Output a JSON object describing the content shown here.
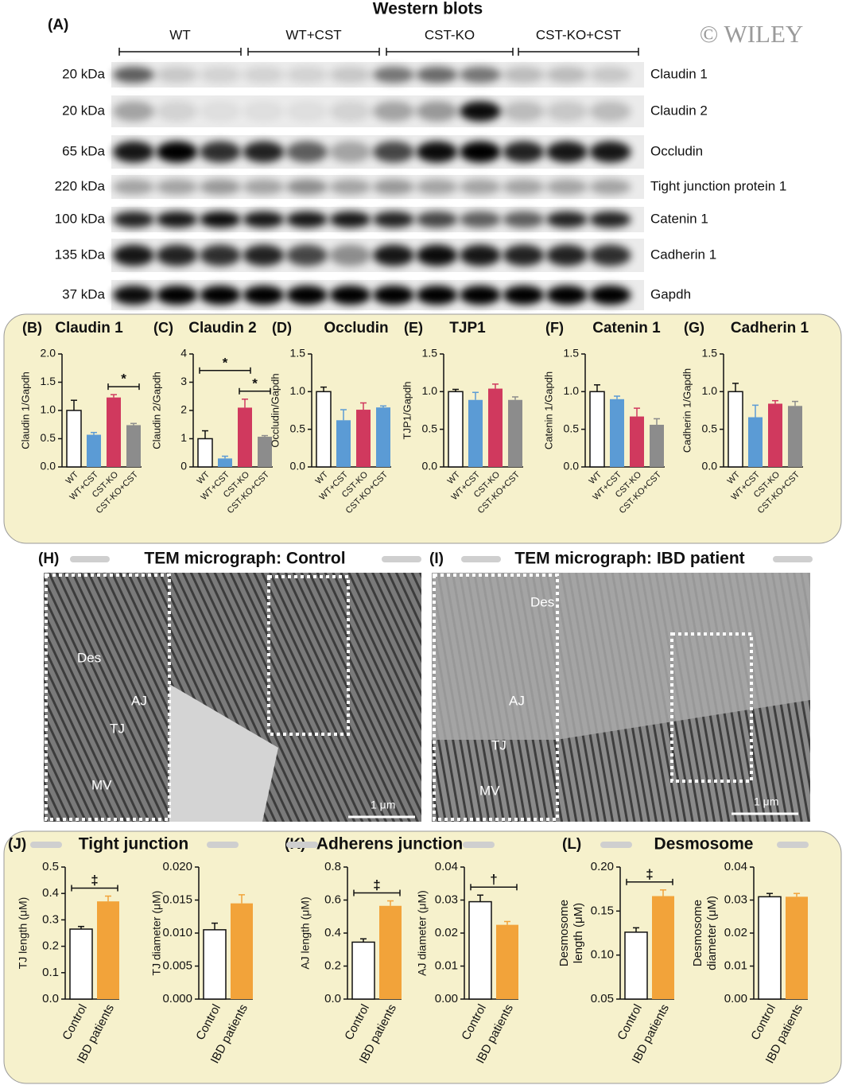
{
  "watermark": "© WILEY",
  "blots": {
    "label": "(A)",
    "title": "Western blots",
    "groups": [
      "WT",
      "WT+CST",
      "CST-KO",
      "CST-KO+CST"
    ],
    "rows": [
      {
        "size": "20 kDa",
        "protein": "Claudin 1"
      },
      {
        "size": "20 kDa",
        "protein": "Claudin 2"
      },
      {
        "size": "65 kDa",
        "protein": "Occludin"
      },
      {
        "size": "220 kDa",
        "protein": "Tight junction protein 1"
      },
      {
        "size": "100 kDa",
        "protein": "Catenin 1"
      },
      {
        "size": "135 kDa",
        "protein": "Cadherin 1"
      },
      {
        "size": "37 kDa",
        "protein": "Gapdh"
      }
    ]
  },
  "tem": [
    {
      "label": "(H)",
      "title": "TEM micrograph: Control",
      "annotations": [
        "Des",
        "AJ",
        "TJ",
        "MV"
      ],
      "scale": "1 μm"
    },
    {
      "label": "(I)",
      "title": "TEM micrograph: IBD patient",
      "annotations": [
        "Des",
        "AJ",
        "TJ",
        "MV"
      ],
      "scale": "1 μm"
    }
  ],
  "groups": [
    {
      "label": "(J)",
      "title": "Tight junction"
    },
    {
      "label": "(K)",
      "title": "Adherens junction"
    },
    {
      "label": "(L)",
      "title": "Desmosome"
    }
  ],
  "chart_data": [
    {
      "type": "bar",
      "panel": "(B)",
      "title": "Claudin 1",
      "ylabel": "Claudin 1/Gapdh",
      "categories": [
        "WT",
        "WT+CST",
        "CST-KO",
        "CST-KO+CST"
      ],
      "values": [
        1.0,
        0.57,
        1.23,
        0.74
      ],
      "errors": [
        0.18,
        0.04,
        0.05,
        0.03
      ],
      "colors": [
        "#ffffff",
        "#5b9bd5",
        "#d0395e",
        "#8c8c8c"
      ],
      "ylim": [
        0,
        2
      ],
      "yticks": [
        {
          "value": 0,
          "label": "0.0"
        },
        0.5,
        {
          "value": 1,
          "label": "1.0"
        },
        1.5,
        {
          "value": 2,
          "label": "2.0"
        }
      ],
      "significance": [
        {
          "from": 2,
          "to": 3,
          "label": "*"
        }
      ]
    },
    {
      "type": "bar",
      "panel": "(C)",
      "title": "Claudin 2",
      "ylabel": "Claudin 2/Gapdh",
      "categories": [
        "WT",
        "WT+CST",
        "CST-KO",
        "CST-KO+CST"
      ],
      "values": [
        1.0,
        0.3,
        2.1,
        1.07
      ],
      "errors": [
        0.28,
        0.08,
        0.3,
        0.04
      ],
      "colors": [
        "#ffffff",
        "#5b9bd5",
        "#d0395e",
        "#8c8c8c"
      ],
      "ylim": [
        0,
        4
      ],
      "yticks": [
        0,
        1,
        2,
        3,
        4
      ],
      "significance": [
        {
          "from": 0,
          "to": 2,
          "label": "*"
        },
        {
          "from": 2,
          "to": 3,
          "label": "*"
        }
      ]
    },
    {
      "type": "bar",
      "panel": "(D)",
      "title": "Occludin",
      "ylabel": "Occludin/Gapdh",
      "categories": [
        "WT",
        "WT+CST",
        "CST-KO",
        "CST-KO+CST"
      ],
      "values": [
        1.0,
        0.62,
        0.76,
        0.79
      ],
      "errors": [
        0.06,
        0.14,
        0.09,
        0.02
      ],
      "colors": [
        "#ffffff",
        "#5b9bd5",
        "#d0395e",
        "#5b9bd5"
      ],
      "ylim": [
        0,
        1.5
      ],
      "yticks": [
        {
          "value": 0,
          "label": "0.0"
        },
        0.5,
        {
          "value": 1,
          "label": "1.0"
        },
        1.5
      ]
    },
    {
      "type": "bar",
      "panel": "(E)",
      "title": "TJP1",
      "ylabel": "TJP1/Gapdh",
      "categories": [
        "WT",
        "WT+CST",
        "CST-KO",
        "CST-KO+CST"
      ],
      "values": [
        1.0,
        0.89,
        1.04,
        0.89
      ],
      "errors": [
        0.03,
        0.1,
        0.06,
        0.04
      ],
      "colors": [
        "#ffffff",
        "#5b9bd5",
        "#d0395e",
        "#8c8c8c"
      ],
      "ylim": [
        0,
        1.5
      ],
      "yticks": [
        {
          "value": 0,
          "label": "0.0"
        },
        0.5,
        {
          "value": 1,
          "label": "1.0"
        },
        1.5
      ]
    },
    {
      "type": "bar",
      "panel": "(F)",
      "title": "Catenin 1",
      "ylabel": "Catenin 1/Gapdh",
      "categories": [
        "WT",
        "WT+CST",
        "CST-KO",
        "CST-KO+CST"
      ],
      "values": [
        1.0,
        0.9,
        0.67,
        0.56
      ],
      "errors": [
        0.09,
        0.04,
        0.11,
        0.08
      ],
      "colors": [
        "#ffffff",
        "#5b9bd5",
        "#d0395e",
        "#8c8c8c"
      ],
      "ylim": [
        0,
        1.5
      ],
      "yticks": [
        {
          "value": 0,
          "label": "0.0"
        },
        0.5,
        {
          "value": 1,
          "label": "1.0"
        },
        1.5
      ]
    },
    {
      "type": "bar",
      "panel": "(G)",
      "title": "Cadherin 1",
      "ylabel": "Cadherin 1/Gapdh",
      "categories": [
        "WT",
        "WT+CST",
        "CST-KO",
        "CST-KO+CST"
      ],
      "values": [
        1.0,
        0.66,
        0.84,
        0.81
      ],
      "errors": [
        0.11,
        0.16,
        0.04,
        0.06
      ],
      "colors": [
        "#ffffff",
        "#5b9bd5",
        "#d0395e",
        "#8c8c8c"
      ],
      "ylim": [
        0,
        1.5
      ],
      "yticks": [
        {
          "value": 0,
          "label": "0.0"
        },
        0.5,
        {
          "value": 1,
          "label": "1.0"
        },
        1.5
      ]
    },
    {
      "type": "bar",
      "ylabel": "TJ length (μM)",
      "categories": [
        "Control",
        "IBD patients"
      ],
      "values": [
        0.265,
        0.37
      ],
      "errors": [
        0.01,
        0.02
      ],
      "colors": [
        "#ffffff",
        "#f2a33a"
      ],
      "ylim": [
        0,
        0.5
      ],
      "yticks": [
        {
          "value": 0,
          "label": "0.0"
        },
        0.1,
        0.2,
        0.3,
        0.4,
        0.5
      ],
      "significance": [
        {
          "from": 0,
          "to": 1,
          "label": "‡"
        }
      ]
    },
    {
      "type": "bar",
      "ylabel": "TJ diameter (μM)",
      "categories": [
        "Control",
        "IBD patients"
      ],
      "values": [
        0.0105,
        0.0145
      ],
      "errors": [
        0.001,
        0.0013
      ],
      "colors": [
        "#ffffff",
        "#f2a33a"
      ],
      "ylim": [
        0,
        0.02
      ],
      "yticks": [
        {
          "value": 0,
          "label": "0.000"
        },
        0.005,
        {
          "value": 0.01,
          "label": "0.010"
        },
        0.015,
        {
          "value": 0.02,
          "label": "0.020"
        }
      ]
    },
    {
      "type": "bar",
      "ylabel": "AJ length (μM)",
      "categories": [
        "Control",
        "IBD patients"
      ],
      "values": [
        0.345,
        0.565
      ],
      "errors": [
        0.02,
        0.03
      ],
      "colors": [
        "#ffffff",
        "#f2a33a"
      ],
      "ylim": [
        0,
        0.8
      ],
      "yticks": [
        {
          "value": 0,
          "label": "0.0"
        },
        0.2,
        0.4,
        0.6,
        0.8
      ],
      "significance": [
        {
          "from": 0,
          "to": 1,
          "label": "‡"
        }
      ]
    },
    {
      "type": "bar",
      "ylabel": "AJ diameter (μM)",
      "categories": [
        "Control",
        "IBD patients"
      ],
      "values": [
        0.0295,
        0.0225
      ],
      "errors": [
        0.002,
        0.001
      ],
      "colors": [
        "#ffffff",
        "#f2a33a"
      ],
      "ylim": [
        0,
        0.04
      ],
      "yticks": [
        {
          "value": 0,
          "label": "0.00"
        },
        0.01,
        0.02,
        0.03,
        0.04
      ],
      "significance": [
        {
          "from": 0,
          "to": 1,
          "label": "†"
        }
      ]
    },
    {
      "type": "bar",
      "ylabel": [
        "Desmosome",
        "length (μM)"
      ],
      "categories": [
        "Control",
        "IBD patients"
      ],
      "values": [
        0.126,
        0.167
      ],
      "errors": [
        0.005,
        0.007
      ],
      "colors": [
        "#ffffff",
        "#f2a33a"
      ],
      "ylim": [
        0.05,
        0.2
      ],
      "yticks": [
        0.05,
        {
          "value": 0.1,
          "label": "0.10"
        },
        0.15,
        {
          "value": 0.2,
          "label": "0.20"
        }
      ],
      "significance": [
        {
          "from": 0,
          "to": 1,
          "label": "‡"
        }
      ]
    },
    {
      "type": "bar",
      "ylabel": [
        "Desmosome",
        "diameter (μM)"
      ],
      "categories": [
        "Control",
        "IBD patients"
      ],
      "values": [
        0.031,
        0.031
      ],
      "errors": [
        0.001,
        0.001
      ],
      "colors": [
        "#ffffff",
        "#f2a33a"
      ],
      "ylim": [
        0,
        0.04
      ],
      "yticks": [
        {
          "value": 0,
          "label": "0.00"
        },
        0.01,
        0.02,
        0.03,
        0.04
      ]
    }
  ]
}
